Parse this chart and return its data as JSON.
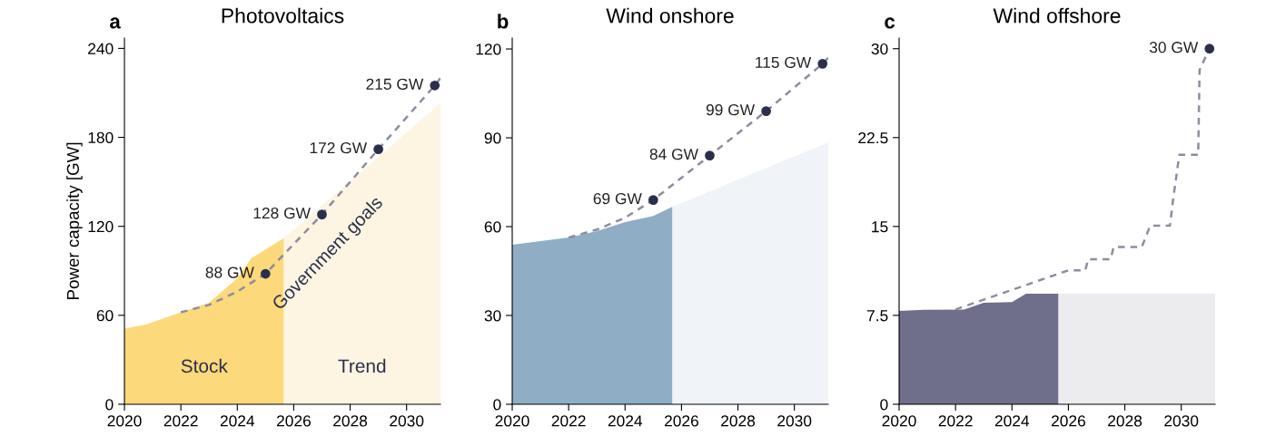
{
  "chart_data": [
    {
      "type": "area",
      "title": "Photovoltaics",
      "ylabel": "Power capacity [GW]",
      "xlim": [
        2020,
        2031.2
      ],
      "xticks": [
        2020,
        2022,
        2024,
        2026,
        2028,
        2030
      ],
      "ylim": [
        0,
        247
      ],
      "yticks": [
        0,
        60,
        120,
        180,
        240
      ],
      "grid": false,
      "legend": false,
      "annotations": [
        "a",
        "Stock",
        "Trend",
        "Government goals"
      ],
      "series": [
        {
          "color": "#fcd97a",
          "x": [
            2020,
            2020.8,
            2022,
            2023,
            2024,
            2024.5,
            2025.65
          ],
          "values": [
            51,
            54,
            62,
            68.5,
            85,
            98.6,
            112
          ]
        },
        {
          "color": "#fdf5e1",
          "x": [
            2025.65,
            2031.2
          ],
          "values": [
            112,
            203
          ]
        },
        {
          "type": "line",
          "color": "#8d8ca0",
          "line_style": "dashed",
          "x": [
            2022,
            2023,
            2024,
            2025,
            2027,
            2029,
            2031,
            2031.2
          ],
          "values": [
            62,
            67,
            76,
            88,
            128,
            172,
            215,
            220
          ]
        },
        {
          "type": "scatter",
          "color": "#2b2f4d",
          "x": [
            2025,
            2027,
            2029,
            2031
          ],
          "values": [
            88,
            128,
            172,
            215
          ],
          "value_labels": [
            "88 GW",
            "128 GW",
            "172 GW",
            "215 GW"
          ]
        }
      ]
    },
    {
      "type": "area",
      "title": "Wind onshore",
      "xlim": [
        2020,
        2031.2
      ],
      "xticks": [
        2020,
        2022,
        2024,
        2026,
        2028,
        2030
      ],
      "ylim": [
        0,
        123.7
      ],
      "yticks": [
        0,
        30,
        60,
        90,
        120
      ],
      "grid": false,
      "legend": false,
      "annotations": [
        "b"
      ],
      "series": [
        {
          "color": "#8faec6",
          "x": [
            2020,
            2022,
            2023,
            2024,
            2025,
            2025.68
          ],
          "values": [
            53.9,
            56.3,
            58.5,
            61.5,
            63.6,
            66.7
          ]
        },
        {
          "color": "#f0f4f8",
          "x": [
            2025.68,
            2031.2
          ],
          "values": [
            66.7,
            88.5
          ]
        },
        {
          "type": "line",
          "color": "#8d8ca0",
          "line_style": "dashed",
          "x": [
            2022,
            2023,
            2024,
            2025,
            2027,
            2029,
            2031,
            2031.2
          ],
          "values": [
            56.3,
            59,
            63,
            69,
            84,
            99,
            115,
            117
          ]
        },
        {
          "type": "scatter",
          "color": "#2b2f4d",
          "x": [
            2025,
            2027,
            2029,
            2031
          ],
          "values": [
            69,
            84,
            99,
            115
          ],
          "value_labels": [
            "69 GW",
            "84 GW",
            "99 GW",
            "115 GW"
          ]
        }
      ]
    },
    {
      "type": "area",
      "title": "Wind offshore",
      "xlim": [
        2020,
        2031.2
      ],
      "xticks": [
        2020,
        2022,
        2024,
        2026,
        2028,
        2030
      ],
      "ylim": [
        0,
        30.9
      ],
      "yticks": [
        0,
        7.5,
        15,
        22.5,
        30
      ],
      "grid": false,
      "legend": false,
      "annotations": [
        "c"
      ],
      "series": [
        {
          "color": "#6f6e8b",
          "x": [
            2020,
            2021,
            2022.3,
            2023,
            2024,
            2024.5,
            2025.65
          ],
          "values": [
            7.88,
            7.98,
            8.0,
            8.57,
            8.62,
            9.33,
            9.33
          ]
        },
        {
          "color": "#ececef",
          "x": [
            2025.65,
            2031.2
          ],
          "values": [
            9.33,
            9.33
          ]
        },
        {
          "type": "line",
          "color": "#8d8ca0",
          "line_style": "dashed",
          "x": [
            2022,
            2026,
            2026.6,
            2026.7,
            2027.5,
            2027.6,
            2028.6,
            2028.9,
            2029.6,
            2029.7,
            2029.93,
            2030.6,
            2030.65,
            2031,
            2031.1
          ],
          "values": [
            8.0,
            11.3,
            11.3,
            12.24,
            12.24,
            13.26,
            13.26,
            15.07,
            15.07,
            17.07,
            21.04,
            21.04,
            28.2,
            30,
            30
          ]
        },
        {
          "type": "scatter",
          "color": "#2b2f4d",
          "x": [
            2031
          ],
          "values": [
            30
          ],
          "value_labels": [
            "30 GW"
          ]
        }
      ]
    }
  ]
}
